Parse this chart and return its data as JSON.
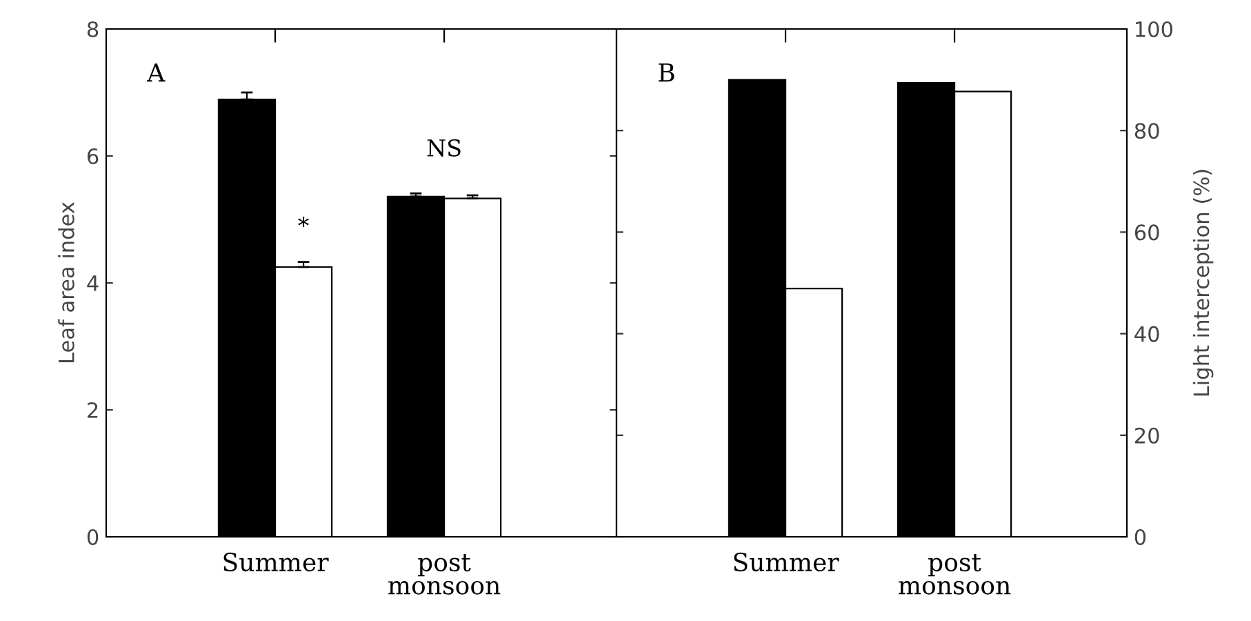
{
  "chart_data": [
    {
      "type": "bar",
      "ylabel": "Leaf area index",
      "categories": [
        "Summer",
        "post\nmonsoon"
      ],
      "ylim": [
        0,
        8
      ],
      "yticks": [
        0,
        2,
        4,
        6,
        8
      ],
      "series": [
        {
          "color": "#000000",
          "values": [
            6.89,
            5.36
          ],
          "errors": [
            0.11,
            0.05
          ]
        },
        {
          "color": "#ffffff",
          "values": [
            4.25,
            5.33
          ],
          "errors": [
            0.08,
            0.05
          ]
        }
      ],
      "annotations": [
        "A",
        "NS",
        {
          "text": "*",
          "x": "Summer",
          "y": 4.7
        }
      ]
    },
    {
      "type": "bar",
      "ylabel": "Light interception (%)",
      "categories": [
        "Summer",
        "post\nmonsoon"
      ],
      "ylim": [
        0,
        100
      ],
      "yticks": [
        0,
        20,
        40,
        60,
        80,
        100
      ],
      "series": [
        {
          "color": "#000000",
          "values": [
            90.0,
            89.4
          ]
        },
        {
          "color": "#ffffff",
          "values": [
            48.9,
            87.7
          ]
        }
      ],
      "annotations": [
        "B"
      ]
    }
  ]
}
